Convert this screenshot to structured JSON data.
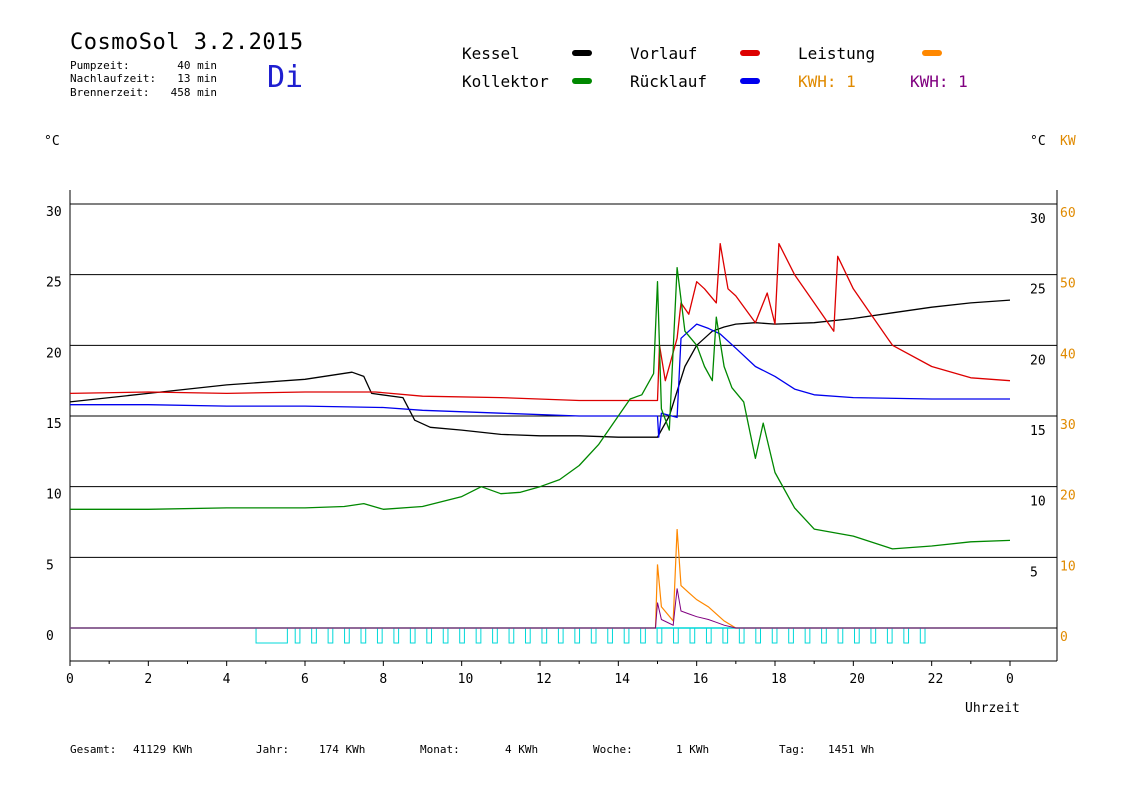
{
  "header": {
    "title": "CosmoSol 3.2.2015",
    "day": "Di",
    "stats": [
      {
        "label": "Pumpzeit:",
        "value": "40 min"
      },
      {
        "label": "Nachlaufzeit:",
        "value": "13 min"
      },
      {
        "label": "Brennerzeit:",
        "value": "458 min"
      }
    ]
  },
  "legend": {
    "kessel": {
      "label": "Kessel",
      "color": "#000000"
    },
    "vorlauf": {
      "label": "Vorlauf",
      "color": "#dd0000"
    },
    "leistung": {
      "label": "Leistung",
      "color": "#ff8800"
    },
    "kollektor": {
      "label": "Kollektor",
      "color": "#008800"
    },
    "ruecklauf": {
      "label": "Rücklauf",
      "color": "#0000ee"
    },
    "kwh1": {
      "label": "KWH: 1",
      "color": "#e08a00"
    },
    "kwh2": {
      "label": "KWH: 1",
      "color": "#800080"
    }
  },
  "units": {
    "left": "°C",
    "right_c": "°C",
    "right_kw": "KW"
  },
  "footer": {
    "gesamt_label": "Gesamt:",
    "gesamt_value": "41129 KWh",
    "jahr_label": "Jahr:",
    "jahr_value": "174 KWh",
    "monat_label": "Monat:",
    "monat_value": "4 KWh",
    "woche_label": "Woche:",
    "woche_value": "1 KWh",
    "tag_label": "Tag:",
    "tag_value": "1451 Wh"
  },
  "chart_data": {
    "type": "line",
    "xlabel": "Uhrzeit",
    "x_ticks": [
      "0",
      "2",
      "4",
      "6",
      "8",
      "10",
      "12",
      "14",
      "16",
      "18",
      "20",
      "22",
      "0"
    ],
    "y_left_ticks": [
      "0",
      "5",
      "10",
      "15",
      "20",
      "25",
      "30"
    ],
    "y_right_c_ticks": [
      "5",
      "10",
      "15",
      "20",
      "25",
      "30"
    ],
    "y_right_kw_ticks": [
      "0",
      "10",
      "20",
      "30",
      "40",
      "50",
      "60"
    ],
    "xlim": [
      0,
      24
    ],
    "ylim": [
      0,
      30
    ],
    "grid": "horizontal",
    "series": [
      {
        "name": "Kessel",
        "color": "#000000",
        "points": [
          [
            0,
            16.0
          ],
          [
            2,
            16.6
          ],
          [
            4,
            17.2
          ],
          [
            6,
            17.6
          ],
          [
            7.2,
            18.1
          ],
          [
            7.5,
            17.8
          ],
          [
            7.7,
            16.6
          ],
          [
            8.5,
            16.3
          ],
          [
            8.8,
            14.7
          ],
          [
            9.2,
            14.2
          ],
          [
            10,
            14.0
          ],
          [
            11,
            13.7
          ],
          [
            12,
            13.6
          ],
          [
            13,
            13.6
          ],
          [
            14,
            13.5
          ],
          [
            15,
            13.5
          ],
          [
            15.3,
            15.0
          ],
          [
            15.7,
            18.5
          ],
          [
            16.0,
            20.0
          ],
          [
            16.4,
            21.0
          ],
          [
            16.7,
            21.3
          ],
          [
            17.0,
            21.5
          ],
          [
            17.5,
            21.6
          ],
          [
            18,
            21.5
          ],
          [
            19,
            21.6
          ],
          [
            20,
            21.9
          ],
          [
            21,
            22.3
          ],
          [
            22,
            22.7
          ],
          [
            23,
            23.0
          ],
          [
            24,
            23.2
          ]
        ]
      },
      {
        "name": "Vorlauf",
        "color": "#dd0000",
        "points": [
          [
            0,
            16.6
          ],
          [
            2,
            16.7
          ],
          [
            4,
            16.6
          ],
          [
            6,
            16.7
          ],
          [
            7.8,
            16.7
          ],
          [
            9,
            16.4
          ],
          [
            11,
            16.3
          ],
          [
            13,
            16.1
          ],
          [
            15,
            16.1
          ],
          [
            15.05,
            20.0
          ],
          [
            15.2,
            17.5
          ],
          [
            15.5,
            20.5
          ],
          [
            15.6,
            23.0
          ],
          [
            15.8,
            22.2
          ],
          [
            16.0,
            24.5
          ],
          [
            16.2,
            24.0
          ],
          [
            16.5,
            23.0
          ],
          [
            16.6,
            27.2
          ],
          [
            16.8,
            24.0
          ],
          [
            17.0,
            23.5
          ],
          [
            17.5,
            21.6
          ],
          [
            17.8,
            23.7
          ],
          [
            18.0,
            21.5
          ],
          [
            18.1,
            27.2
          ],
          [
            18.5,
            25.0
          ],
          [
            19.0,
            23.0
          ],
          [
            19.5,
            21.0
          ],
          [
            19.6,
            26.3
          ],
          [
            20.0,
            24.0
          ],
          [
            20.5,
            22.0
          ],
          [
            21.0,
            20.0
          ],
          [
            22,
            18.5
          ],
          [
            23,
            17.7
          ],
          [
            24,
            17.5
          ]
        ]
      },
      {
        "name": "Rücklauf",
        "color": "#0000ee",
        "points": [
          [
            0,
            15.8
          ],
          [
            2,
            15.8
          ],
          [
            4,
            15.7
          ],
          [
            6,
            15.7
          ],
          [
            8,
            15.6
          ],
          [
            9,
            15.4
          ],
          [
            11,
            15.2
          ],
          [
            13,
            15.0
          ],
          [
            15,
            15.0
          ],
          [
            15.03,
            13.5
          ],
          [
            15.1,
            15.2
          ],
          [
            15.5,
            14.9
          ],
          [
            15.6,
            20.5
          ],
          [
            15.8,
            21.0
          ],
          [
            16.0,
            21.5
          ],
          [
            16.3,
            21.2
          ],
          [
            16.6,
            20.8
          ],
          [
            17.0,
            19.8
          ],
          [
            17.5,
            18.5
          ],
          [
            18,
            17.8
          ],
          [
            18.5,
            16.9
          ],
          [
            19,
            16.5
          ],
          [
            20,
            16.3
          ],
          [
            22,
            16.2
          ],
          [
            24,
            16.2
          ]
        ]
      },
      {
        "name": "Kollektor",
        "color": "#008800",
        "points": [
          [
            0,
            8.4
          ],
          [
            2,
            8.4
          ],
          [
            4,
            8.5
          ],
          [
            6,
            8.5
          ],
          [
            7,
            8.6
          ],
          [
            7.5,
            8.8
          ],
          [
            8,
            8.4
          ],
          [
            9,
            8.6
          ],
          [
            10,
            9.3
          ],
          [
            10.5,
            10.0
          ],
          [
            11,
            9.5
          ],
          [
            11.5,
            9.6
          ],
          [
            12,
            10.0
          ],
          [
            12.5,
            10.5
          ],
          [
            13,
            11.5
          ],
          [
            13.5,
            13.0
          ],
          [
            14,
            15.0
          ],
          [
            14.3,
            16.2
          ],
          [
            14.6,
            16.5
          ],
          [
            14.9,
            18.0
          ],
          [
            15.0,
            24.5
          ],
          [
            15.1,
            15.5
          ],
          [
            15.3,
            14.0
          ],
          [
            15.5,
            25.5
          ],
          [
            15.7,
            21.0
          ],
          [
            16.0,
            20.0
          ],
          [
            16.2,
            18.5
          ],
          [
            16.4,
            17.5
          ],
          [
            16.5,
            22.0
          ],
          [
            16.7,
            18.5
          ],
          [
            16.9,
            17.0
          ],
          [
            17.2,
            16.0
          ],
          [
            17.5,
            12.0
          ],
          [
            17.7,
            14.5
          ],
          [
            18,
            11.0
          ],
          [
            18.5,
            8.5
          ],
          [
            19,
            7.0
          ],
          [
            20,
            6.5
          ],
          [
            21,
            5.6
          ],
          [
            22,
            5.8
          ],
          [
            23,
            6.1
          ],
          [
            24,
            6.2
          ]
        ]
      }
    ],
    "leistung_kw": {
      "name": "Leistung",
      "color": "#ff8800",
      "points": [
        [
          0,
          0
        ],
        [
          14.95,
          0
        ],
        [
          15.0,
          4.5
        ],
        [
          15.1,
          1.5
        ],
        [
          15.4,
          0.5
        ],
        [
          15.5,
          7.0
        ],
        [
          15.6,
          3.0
        ],
        [
          15.8,
          2.5
        ],
        [
          16,
          2.0
        ],
        [
          16.3,
          1.5
        ],
        [
          16.5,
          1.0
        ],
        [
          16.7,
          0.5
        ],
        [
          17,
          0
        ],
        [
          24,
          0
        ]
      ]
    }
  }
}
